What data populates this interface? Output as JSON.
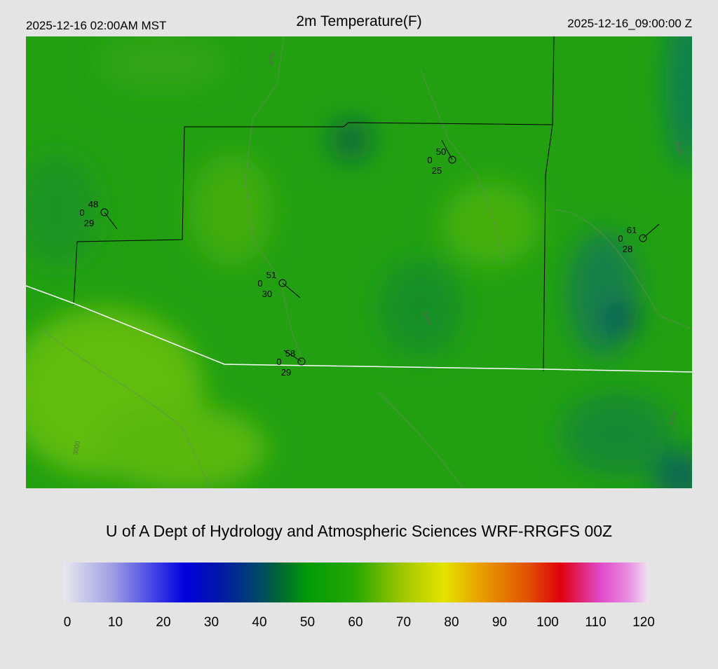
{
  "header": {
    "local_time": "2025-12-16 02:00AM MST",
    "title": "2m Temperature(F)",
    "utc_time": "2025-12-16_09:00:00 Z"
  },
  "map": {
    "stations": [
      {
        "temperature": 48,
        "wind": 0,
        "dewpoint": 29
      },
      {
        "temperature": 50,
        "wind": 0,
        "dewpoint": 25
      },
      {
        "temperature": 61,
        "wind": 0,
        "dewpoint": 28
      },
      {
        "temperature": 51,
        "wind": 0,
        "dewpoint": 30
      },
      {
        "temperature": 58,
        "wind": 0,
        "dewpoint": 29
      }
    ],
    "contour_labels": [
      "3000",
      "4000",
      "5000",
      "3000",
      "4000"
    ]
  },
  "credit": "U of A Dept of Hydrology and Atmospheric Sciences WRF-RRGFS 00Z",
  "colorbar": {
    "range": [
      0,
      120
    ],
    "ticks": [
      0,
      10,
      20,
      30,
      40,
      50,
      60,
      70,
      80,
      90,
      100,
      110,
      120
    ],
    "colormap": [
      [
        0,
        "#e8e8f0"
      ],
      [
        10,
        "#a0a0e4"
      ],
      [
        20,
        "#3434e6"
      ],
      [
        25,
        "#0000dc"
      ],
      [
        32,
        "#0018a8"
      ],
      [
        40,
        "#00486a"
      ],
      [
        44,
        "#006438"
      ],
      [
        50,
        "#009a08"
      ],
      [
        60,
        "#28a800"
      ],
      [
        70,
        "#a4c800"
      ],
      [
        78,
        "#e4e400"
      ],
      [
        85,
        "#e8a400"
      ],
      [
        95,
        "#e05400"
      ],
      [
        102,
        "#e00010"
      ],
      [
        110,
        "#e048c8"
      ],
      [
        116,
        "#e890e0"
      ],
      [
        120,
        "#f0e4f0"
      ]
    ]
  }
}
